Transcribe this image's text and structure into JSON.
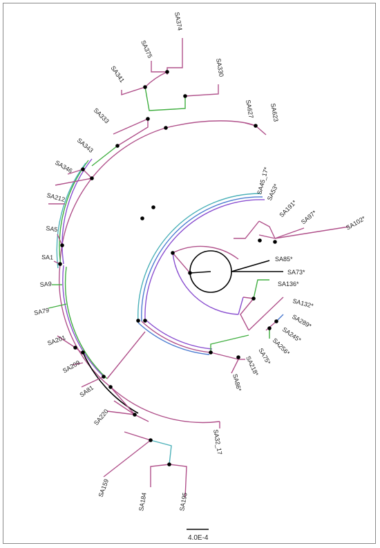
{
  "tree": {
    "scale_bar_label": "4.0E-4",
    "taxa": {
      "SA374": "SA374",
      "SA375": "SA375",
      "SA341": "SA341",
      "SA330": "SA330",
      "SA333": "SA333",
      "SA627": "SA627",
      "SA623": "SA623",
      "SA343": "SA343",
      "SA346": "SA346",
      "SA212": "SA212",
      "SA5": "SA5",
      "SA1": "SA1",
      "SA9": "SA9",
      "SA79": "SA79",
      "SA201": "SA201",
      "SA209": "SA209",
      "SA81": "SA81",
      "SA220": "SA220",
      "SA159": "SA159",
      "SA184": "SA184",
      "SA195": "SA195",
      "SA32_17": "SA32_17",
      "SA45_17": "SA45_17*",
      "SA53": "SA53*",
      "SA191": "SA191*",
      "SA97": "SA97*",
      "SA102": "SA102*",
      "SA85": "SA85*",
      "SA73": "SA73*",
      "SA136": "SA136*",
      "SA132": "SA132*",
      "SA289": "SA289*",
      "SA245": "SA245*",
      "SA256": "SA256*",
      "SA75": "SA75*",
      "SA218": "SA218*",
      "SA86": "SA86*"
    },
    "branch_colors": {
      "magenta": "#b0508a",
      "violet": "#8a4fd0",
      "green": "#3fae3f",
      "blue": "#4a7bd0",
      "teal": "#4ab0b8",
      "black": "#000000"
    }
  }
}
